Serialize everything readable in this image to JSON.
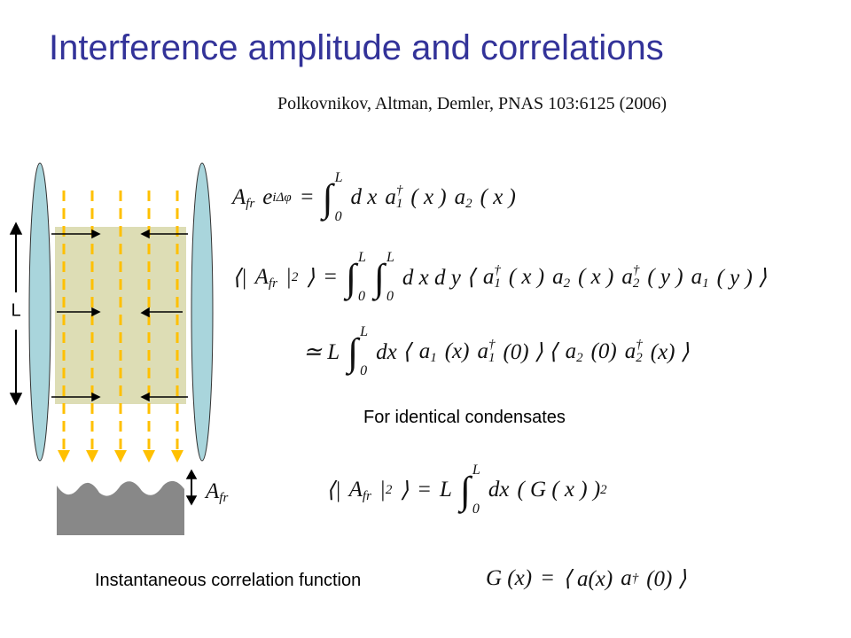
{
  "title": "Interference amplitude and correlations",
  "citation": "Polkovnikov, Altman, Demler,  PNAS 103:6125 (2006)",
  "diagram": {
    "length_label": "L",
    "amplitude_label": {
      "base": "A",
      "sub": "fr"
    }
  },
  "notes": [
    "For identical condensates",
    "Instantaneous correlation function"
  ],
  "equations": [
    [
      {
        "base": "A",
        "sub": "fr"
      },
      {
        "base": "e",
        "sup": "iΔφ"
      },
      "=",
      {
        "base": "∫",
        "sub": "0",
        "sup": "L"
      },
      "d x",
      {
        "base": "a",
        "sub": "1",
        "sup": "†"
      },
      "( x )",
      {
        "base": "a",
        "sub": "2"
      },
      "( x )"
    ],
    [
      "⟨|",
      {
        "base": "A",
        "sub": "fr"
      },
      {
        "base": "|",
        "sup": "2"
      },
      "⟩",
      "=",
      {
        "base": "∫",
        "sub": "0",
        "sup": "L"
      },
      {
        "base": "∫",
        "sub": "0",
        "sup": "L"
      },
      "d x d y ⟨",
      {
        "base": "a",
        "sub": "1",
        "sup": "†"
      },
      "( x )",
      {
        "base": "a",
        "sub": "2"
      },
      "( x )",
      {
        "base": "a",
        "sub": "2",
        "sup": "†"
      },
      "( y )",
      {
        "base": "a",
        "sub": "1"
      },
      "( y ) ⟩"
    ],
    [
      "≃ L",
      {
        "base": "∫",
        "sub": "0",
        "sup": "L"
      },
      "dx ⟨",
      {
        "base": "a",
        "sub": "1"
      },
      "(x)",
      {
        "base": "a",
        "sub": "1",
        "sup": "†"
      },
      "(0) ⟩ ⟨",
      {
        "base": "a",
        "sub": "2"
      },
      "(0)",
      {
        "base": "a",
        "sub": "2",
        "sup": "†"
      },
      "(x) ⟩"
    ],
    [
      "⟨|",
      {
        "base": "A",
        "sub": "fr"
      },
      {
        "base": "|",
        "sup": "2"
      },
      "⟩",
      "=",
      "L",
      {
        "base": "∫",
        "sub": "0",
        "sup": "L"
      },
      "dx",
      {
        "base": "( G ( x ) )",
        "sup": "2"
      }
    ],
    [
      "G (x)",
      "=",
      "⟨ a(x)",
      {
        "base": "a",
        "sup": "†"
      },
      "(0) ⟩"
    ]
  ]
}
